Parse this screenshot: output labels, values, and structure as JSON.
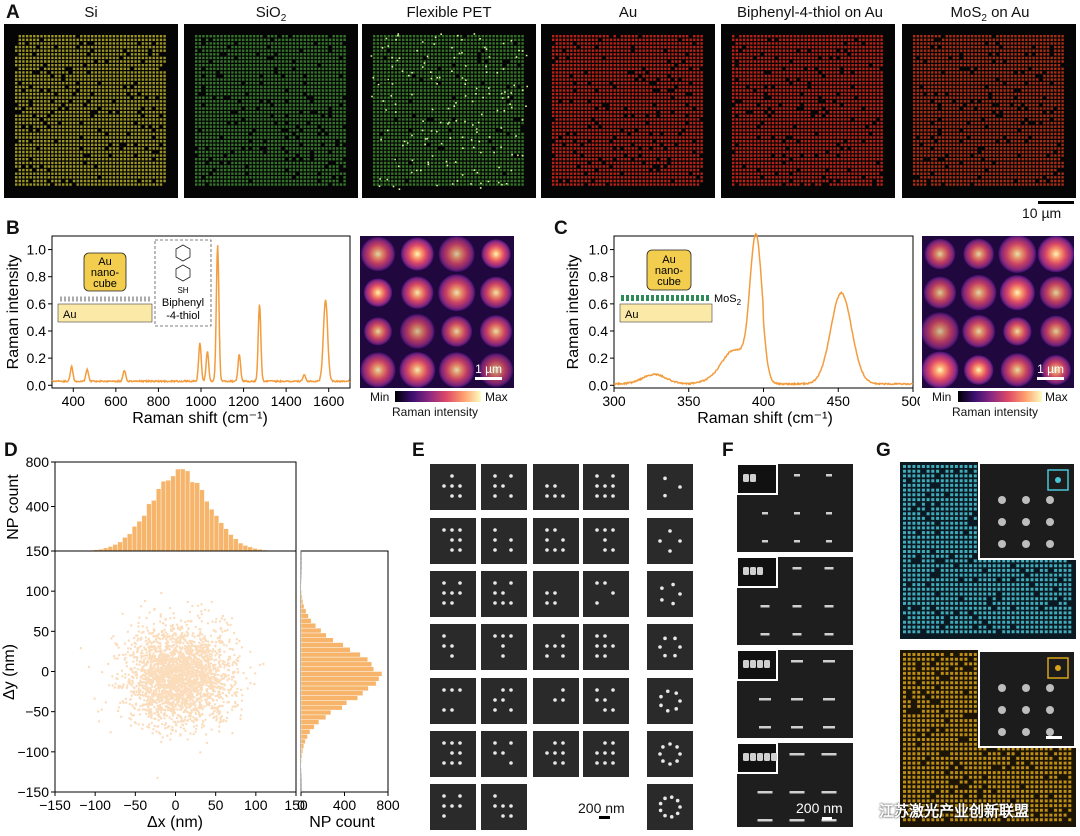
{
  "panels": {
    "A": {
      "label": "A",
      "titles": [
        "Si",
        "SiO",
        "Flexible PET",
        "Au",
        "Biphenyl-4-thiol on Au",
        "MoS"
      ],
      "scale_bar": "10 µm",
      "colors": [
        "#b8b02a",
        "#3e8a32",
        "#5cd043",
        "#d7271a",
        "#d7271a",
        "#c63518"
      ]
    },
    "B": {
      "label": "B",
      "ylabel": "Raman intensity",
      "xlabel": "Raman shift (cm⁻¹)",
      "inset_cube": [
        "Au",
        "nano-",
        "cube"
      ],
      "inset_substrate": "Au",
      "molecule_sh": "SH",
      "molecule_name": [
        "Biphenyl",
        "-4-thiol"
      ],
      "map_scale": "1 µm",
      "cbar_min": "Min",
      "cbar_max": "Max",
      "cbar_label": "Raman intensity"
    },
    "C": {
      "label": "C",
      "ylabel": "Raman intensity",
      "xlabel": "Raman shift (cm⁻¹)",
      "inset_cube": [
        "Au",
        "nano-",
        "cube"
      ],
      "inset_layer": "MoS",
      "inset_substrate": "Au",
      "map_scale": "1 µm",
      "cbar_min": "Min",
      "cbar_max": "Max",
      "cbar_label": "Raman intensity"
    },
    "D": {
      "label": "D",
      "hist_top_ylabel": "NP count",
      "scatter_xlabel": "Δx (nm)",
      "scatter_ylabel": "Δy (nm)",
      "hist_right_xlabel": "NP count"
    },
    "E": {
      "label": "E",
      "scale_bar": "200 nm"
    },
    "F": {
      "label": "F",
      "scale_bar": "200 nm"
    },
    "G": {
      "label": "G"
    },
    "watermark": "江苏激光产业创新联盟"
  },
  "chart_data": [
    {
      "type": "line",
      "id": "B-spectrum",
      "xlabel": "Raman shift (cm⁻¹)",
      "ylabel": "Raman intensity",
      "xlim": [
        300,
        1700
      ],
      "ylim": [
        -0.02,
        1.1
      ],
      "xticks": [
        400,
        600,
        800,
        1000,
        1200,
        1400,
        1600
      ],
      "yticks": [
        0.0,
        0.2,
        0.4,
        0.6,
        0.8,
        1.0
      ],
      "color": "#f39c3d",
      "peaks": [
        {
          "x": 392,
          "y": 0.11
        },
        {
          "x": 465,
          "y": 0.09
        },
        {
          "x": 640,
          "y": 0.08
        },
        {
          "x": 995,
          "y": 0.28
        },
        {
          "x": 1030,
          "y": 0.22
        },
        {
          "x": 1078,
          "y": 1.0
        },
        {
          "x": 1180,
          "y": 0.2
        },
        {
          "x": 1275,
          "y": 0.57
        },
        {
          "x": 1485,
          "y": 0.05
        },
        {
          "x": 1585,
          "y": 0.6
        }
      ]
    },
    {
      "type": "line",
      "id": "C-spectrum",
      "xlabel": "Raman shift (cm⁻¹)",
      "ylabel": "Raman intensity",
      "xlim": [
        300,
        500
      ],
      "ylim": [
        -0.02,
        1.1
      ],
      "xticks": [
        300,
        350,
        400,
        450,
        500
      ],
      "yticks": [
        0.0,
        0.2,
        0.4,
        0.6,
        0.8,
        1.0
      ],
      "color": "#f39c3d",
      "peaks": [
        {
          "x": 327,
          "y": 0.07
        },
        {
          "x": 380,
          "y": 0.2
        },
        {
          "x": 395,
          "y": 1.0
        },
        {
          "x": 452,
          "y": 0.67
        }
      ]
    },
    {
      "type": "scatter",
      "id": "D-scatter",
      "xlabel": "Δx (nm)",
      "ylabel": "Δy (nm)",
      "xlim": [
        -150,
        150
      ],
      "ylim": [
        -150,
        150
      ],
      "xticks": [
        -150,
        -100,
        -50,
        0,
        50,
        100,
        150
      ],
      "yticks": [
        -150,
        -100,
        -50,
        0,
        50,
        100,
        150
      ],
      "center": [
        5,
        -5
      ],
      "std": [
        32,
        30
      ],
      "color": "#f39c3d"
    },
    {
      "type": "bar",
      "id": "D-hist-x",
      "ylabel": "NP count",
      "ylim": [
        0,
        800
      ],
      "yticks": [
        0,
        400,
        800
      ],
      "peak_count": 720
    },
    {
      "type": "bar",
      "id": "D-hist-y",
      "xlabel": "NP count",
      "xlim": [
        0,
        800
      ],
      "xticks": [
        0,
        400,
        800
      ],
      "peak_count": 730
    }
  ]
}
